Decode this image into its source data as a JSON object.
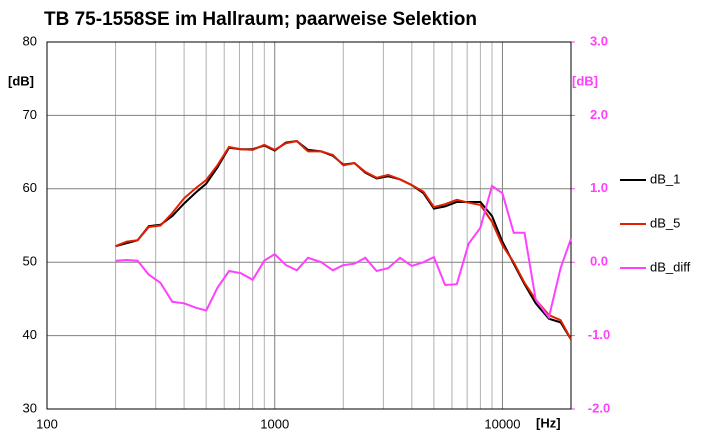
{
  "chart_data": {
    "type": "line",
    "title": "TB 75-1558SE im Hallraum;  paarweise Selektion",
    "x_label": "[Hz]",
    "y_label": "[dB]",
    "y2_label": "[dB]",
    "log_x": true,
    "grid": true,
    "legend": "right",
    "xlim": [
      100,
      20000
    ],
    "xticks": [
      100,
      1000,
      10000
    ],
    "ylim": [
      30,
      80
    ],
    "yticks": [
      30,
      40,
      50,
      60,
      70,
      80
    ],
    "y2lim": [
      -2,
      3
    ],
    "y2ticks": [
      {
        "value": -2,
        "label": "-2.0"
      },
      {
        "value": -1,
        "label": "-1.0"
      },
      {
        "value": 0,
        "label": "0.0"
      },
      {
        "value": 1,
        "label": "1.0"
      },
      {
        "value": 2,
        "label": "2.0"
      },
      {
        "value": 3,
        "label": "3.0"
      }
    ],
    "x": [
      200,
      224,
      250,
      280,
      315,
      355,
      400,
      450,
      500,
      560,
      630,
      710,
      800,
      900,
      1000,
      1120,
      1250,
      1400,
      1600,
      1800,
      2000,
      2240,
      2500,
      2800,
      3150,
      3550,
      4000,
      4500,
      5000,
      5600,
      6300,
      7100,
      8000,
      9000,
      10000,
      11200,
      12500,
      14000,
      16000,
      18000,
      20000
    ],
    "series": [
      {
        "name": "dB_1",
        "color": "#000000",
        "values": [
          52.2,
          52.6,
          53,
          54.9,
          55.1,
          56.3,
          58,
          59.5,
          60.7,
          62.9,
          65.6,
          65.4,
          65.4,
          65.9,
          65.2,
          66.3,
          66.5,
          65.3,
          65.1,
          64.5,
          63.3,
          63.5,
          62.2,
          61.4,
          61.7,
          61.3,
          60.5,
          59.4,
          57.3,
          57.6,
          58.2,
          58.2,
          58.2,
          56.3,
          52.8,
          49.8,
          47,
          44.4,
          42.3,
          41.8,
          39.5
        ]
      },
      {
        "name": "dB_5",
        "color": "#e02000",
        "values": [
          52.2,
          52.8,
          53,
          54.8,
          55,
          56.7,
          58.7,
          60.1,
          61.2,
          63.2,
          65.7,
          65.4,
          65.3,
          66,
          65.3,
          66.2,
          66.5,
          65.1,
          65.1,
          64.6,
          63.2,
          63.5,
          62.3,
          61.5,
          61.9,
          61.3,
          60.5,
          59.6,
          57.5,
          57.9,
          58.5,
          58.1,
          57.8,
          55.5,
          52.3,
          50,
          47.2,
          44.9,
          42.8,
          42.1,
          39.5
        ]
      },
      {
        "name": "dB_diff",
        "color": "#ff40ff",
        "axis": "y2",
        "values": [
          0.02,
          0.03,
          0.02,
          -0.17,
          -0.28,
          -0.54,
          -0.56,
          -0.62,
          -0.66,
          -0.35,
          -0.12,
          -0.15,
          -0.24,
          0.02,
          0.11,
          -0.04,
          -0.11,
          0.06,
          0,
          -0.11,
          -0.04,
          -0.02,
          0.06,
          -0.12,
          -0.08,
          0.06,
          -0.05,
          0,
          0.07,
          -0.31,
          -0.3,
          0.25,
          0.47,
          1.04,
          0.94,
          0.4,
          0.4,
          -0.51,
          -0.75,
          -0.08,
          0.32
        ]
      }
    ]
  }
}
